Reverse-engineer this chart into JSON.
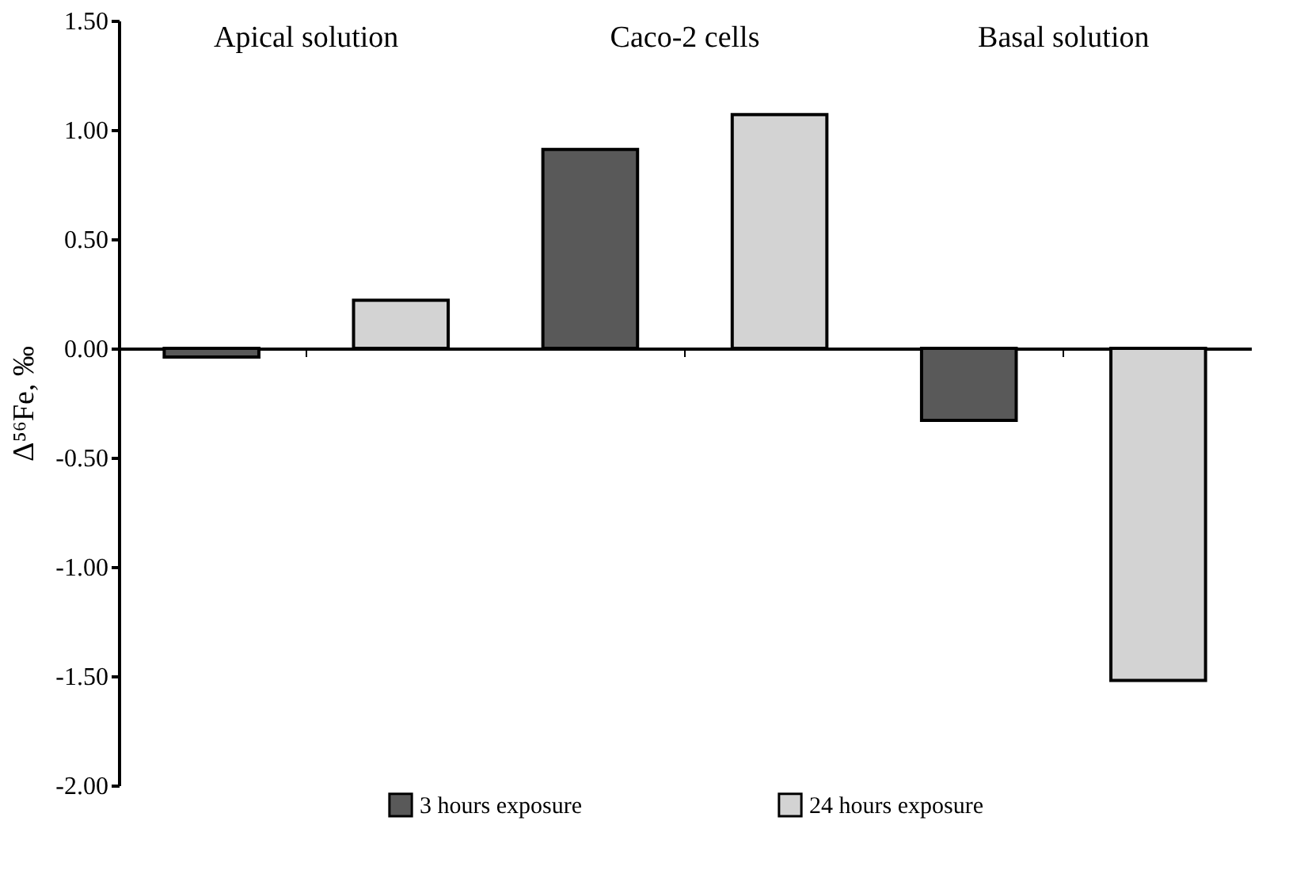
{
  "chart_data": {
    "type": "bar",
    "ylabel": "Δ⁵⁶Fe, ‰",
    "categories": [
      "Apical solution",
      "Caco-2 cells",
      "Basal solution"
    ],
    "series": [
      {
        "name": "3 hours exposure",
        "color": "#595959",
        "values": [
          -0.04,
          0.91,
          -0.33
        ]
      },
      {
        "name": "24 hours exposure",
        "color": "#d3d3d3",
        "values": [
          0.22,
          1.07,
          -1.52
        ]
      }
    ],
    "ylim": [
      -2,
      1.5
    ],
    "yticks": [
      {
        "value": -2,
        "label": "-2.00"
      },
      {
        "value": -1.5,
        "label": "-1.50"
      },
      {
        "value": -1,
        "label": "-1.00"
      },
      {
        "value": -0.5,
        "label": "-0.50"
      },
      {
        "value": 0,
        "label": "0.00"
      },
      {
        "value": 0.5,
        "label": "0.50"
      },
      {
        "value": 1,
        "label": "1.00"
      },
      {
        "value": 1.5,
        "label": "1.50"
      }
    ],
    "legend": "bottom"
  }
}
